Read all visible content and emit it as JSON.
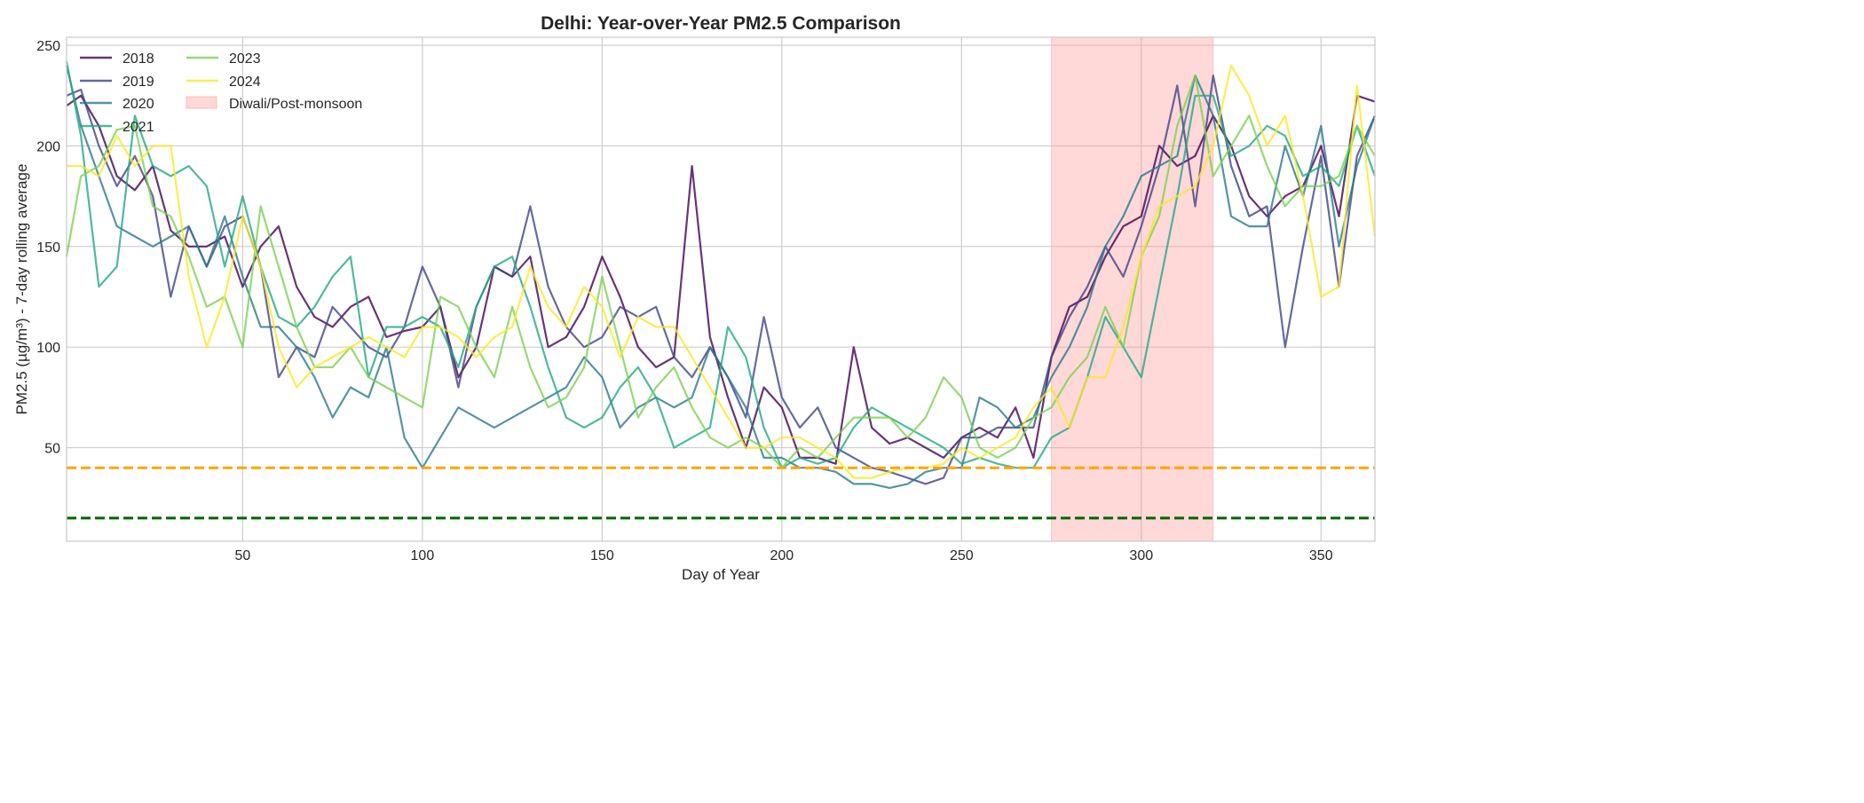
{
  "chart_data": {
    "type": "line",
    "title": "Delhi: Year-over-Year PM2.5 Comparison",
    "xlabel": "Day of Year",
    "ylabel": "PM2.5 (µg/m³) - 7-day rolling average",
    "xlim": [
      1,
      365
    ],
    "ylim": [
      3.5,
      254
    ],
    "xticks": [
      50,
      100,
      150,
      200,
      250,
      300,
      350
    ],
    "yticks": [
      50,
      100,
      150,
      200,
      250
    ],
    "grid": true,
    "legend_placement": "top-left",
    "x": [
      1,
      5,
      10,
      15,
      20,
      25,
      30,
      35,
      40,
      45,
      50,
      55,
      60,
      65,
      70,
      75,
      80,
      85,
      90,
      95,
      100,
      105,
      110,
      115,
      120,
      125,
      130,
      135,
      140,
      145,
      150,
      155,
      160,
      165,
      170,
      175,
      180,
      185,
      190,
      195,
      200,
      205,
      210,
      215,
      220,
      225,
      230,
      235,
      240,
      245,
      250,
      255,
      260,
      265,
      270,
      275,
      280,
      285,
      290,
      295,
      300,
      305,
      310,
      315,
      320,
      325,
      330,
      335,
      340,
      345,
      350,
      355,
      360,
      365
    ],
    "series": [
      {
        "name": "2018",
        "color": "#440154",
        "values": [
          220,
          225,
          210,
          185,
          178,
          190,
          158,
          150,
          150,
          155,
          130,
          150,
          160,
          130,
          115,
          110,
          120,
          125,
          105,
          108,
          110,
          120,
          85,
          100,
          140,
          135,
          145,
          100,
          105,
          120,
          145,
          125,
          100,
          90,
          95,
          190,
          105,
          75,
          50,
          80,
          70,
          45,
          45,
          42,
          100,
          60,
          52,
          55,
          50,
          45,
          55,
          60,
          55,
          70,
          45,
          95,
          120,
          125,
          145,
          160,
          165,
          200,
          190,
          195,
          215,
          200,
          175,
          165,
          175,
          180,
          200,
          165,
          225,
          222
        ]
      },
      {
        "name": "2019",
        "color": "#414487",
        "values": [
          225,
          228,
          200,
          180,
          195,
          175,
          125,
          160,
          140,
          160,
          165,
          140,
          85,
          100,
          95,
          120,
          110,
          100,
          95,
          110,
          140,
          120,
          80,
          120,
          140,
          135,
          170,
          130,
          110,
          100,
          105,
          120,
          115,
          120,
          95,
          85,
          100,
          85,
          65,
          115,
          75,
          60,
          70,
          50,
          45,
          40,
          38,
          35,
          32,
          35,
          55,
          55,
          60,
          60,
          60,
          95,
          115,
          130,
          150,
          135,
          160,
          190,
          230,
          170,
          235,
          190,
          165,
          170,
          100,
          150,
          195,
          130,
          195,
          215
        ]
      },
      {
        "name": "2020",
        "color": "#2a788e",
        "values": [
          240,
          210,
          185,
          160,
          155,
          150,
          155,
          160,
          140,
          165,
          135,
          110,
          110,
          100,
          85,
          65,
          80,
          75,
          100,
          55,
          40,
          55,
          70,
          65,
          60,
          65,
          70,
          75,
          80,
          95,
          85,
          60,
          70,
          75,
          70,
          75,
          100,
          85,
          70,
          45,
          45,
          40,
          40,
          38,
          32,
          32,
          30,
          32,
          38,
          40,
          40,
          75,
          70,
          60,
          65,
          85,
          100,
          120,
          150,
          165,
          185,
          190,
          195,
          235,
          215,
          165,
          160,
          160,
          200,
          175,
          210,
          150,
          190,
          215
        ]
      },
      {
        "name": "2021",
        "color": "#22a884",
        "values": [
          242,
          205,
          130,
          140,
          215,
          190,
          185,
          190,
          180,
          140,
          175,
          140,
          115,
          110,
          120,
          135,
          145,
          85,
          110,
          110,
          115,
          110,
          90,
          120,
          140,
          145,
          120,
          90,
          65,
          60,
          65,
          80,
          90,
          75,
          50,
          55,
          60,
          110,
          95,
          60,
          40,
          45,
          42,
          45,
          60,
          70,
          65,
          60,
          55,
          50,
          42,
          45,
          42,
          40,
          40,
          55,
          60,
          85,
          115,
          100,
          85,
          130,
          175,
          225,
          225,
          195,
          200,
          210,
          205,
          185,
          190,
          180,
          210,
          185
        ]
      },
      {
        "name": "2023",
        "color": "#7ad151",
        "values": [
          145,
          185,
          190,
          208,
          210,
          170,
          165,
          145,
          120,
          125,
          100,
          170,
          140,
          110,
          90,
          90,
          100,
          85,
          80,
          75,
          70,
          125,
          120,
          100,
          85,
          120,
          90,
          70,
          75,
          90,
          135,
          100,
          65,
          80,
          90,
          70,
          55,
          50,
          55,
          50,
          40,
          50,
          45,
          55,
          65,
          65,
          65,
          55,
          65,
          85,
          75,
          50,
          45,
          50,
          65,
          70,
          85,
          95,
          120,
          100,
          145,
          165,
          210,
          235,
          185,
          200,
          215,
          190,
          170,
          180,
          180,
          185,
          210,
          195
        ]
      },
      {
        "name": "2024",
        "color": "#fde725",
        "values": [
          190,
          190,
          185,
          205,
          190,
          200,
          200,
          135,
          100,
          125,
          165,
          140,
          100,
          80,
          90,
          95,
          100,
          105,
          100,
          95,
          110,
          110,
          105,
          95,
          105,
          110,
          140,
          120,
          110,
          130,
          120,
          95,
          115,
          110,
          110,
          95,
          80,
          65,
          50,
          50,
          55,
          55,
          50,
          45,
          35,
          35,
          38,
          40,
          40,
          42,
          50,
          45,
          50,
          55,
          70,
          80,
          60,
          85,
          85,
          110,
          145,
          170,
          175,
          180,
          200,
          240,
          225,
          200,
          215,
          175,
          125,
          130,
          230,
          155
        ]
      }
    ],
    "shaded_region": {
      "label": "Diwali/Post-monsoon",
      "x_range": [
        275,
        320
      ],
      "color": "#ff9999"
    },
    "reference_lines": [
      {
        "y": 40,
        "color": "#ffa500",
        "style": "dashed"
      },
      {
        "y": 15,
        "color": "#006400",
        "style": "dashed"
      }
    ]
  }
}
